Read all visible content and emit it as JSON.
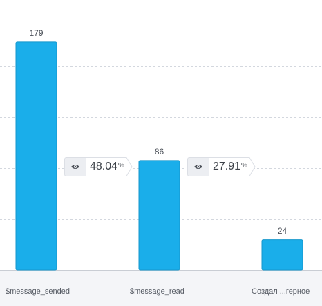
{
  "chart_data": {
    "type": "bar",
    "categories": [
      "$message_sended",
      "$message_read",
      "Создал ...герное"
    ],
    "values": [
      179,
      86,
      24
    ],
    "value_labels": [
      "179",
      "86",
      "24"
    ],
    "ylim": [
      0,
      200
    ],
    "grid": true,
    "bar_color": "#1aaeea",
    "conversions": [
      {
        "value": "48.04",
        "unit": "%",
        "icon": "eye-icon"
      },
      {
        "value": "27.91",
        "unit": "%",
        "icon": "eye-icon"
      }
    ]
  }
}
